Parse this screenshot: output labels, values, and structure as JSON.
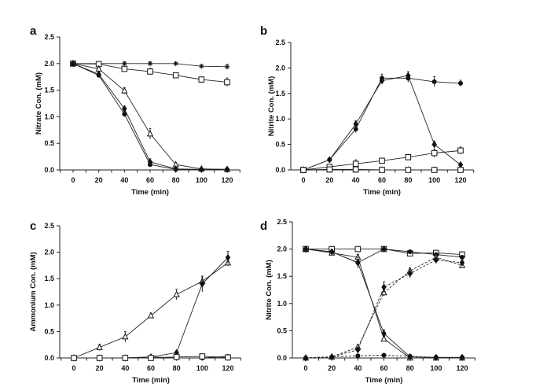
{
  "chart_data": [
    {
      "panel": "a",
      "type": "line",
      "title": "",
      "xlabel": "Time (min)",
      "ylabel": "Nitrate Con. (mM)",
      "xlim": [
        -10,
        130
      ],
      "ylim": [
        0,
        2.5
      ],
      "xticks": [
        0,
        20,
        40,
        60,
        80,
        100,
        120
      ],
      "yticks": [
        "0.0",
        "0.5",
        "1.0",
        "1.5",
        "2.0",
        "2.5"
      ],
      "grid": false,
      "legend": "none",
      "x": [
        0,
        20,
        40,
        60,
        80,
        100,
        120
      ],
      "series": [
        {
          "name": "asterisk",
          "marker": "asterisk",
          "dash": false,
          "values": [
            2.0,
            2.0,
            2.0,
            2.0,
            2.0,
            1.95,
            1.94
          ],
          "err": [
            0,
            0.02,
            0.03,
            0.03,
            0.02,
            0.02,
            0.05
          ]
        },
        {
          "name": "open-square",
          "marker": "square-open",
          "dash": false,
          "values": [
            2.0,
            1.99,
            1.9,
            1.85,
            1.78,
            1.7,
            1.65
          ],
          "err": [
            0,
            0.02,
            0.04,
            0.06,
            0.03,
            0.03,
            0.08
          ]
        },
        {
          "name": "open-triangle",
          "marker": "triangle-open",
          "dash": false,
          "values": [
            2.0,
            1.9,
            1.49,
            0.68,
            0.1,
            0.02,
            0.01
          ],
          "err": [
            0,
            0.03,
            0.06,
            0.1,
            0.03,
            0.01,
            0.01
          ]
        },
        {
          "name": "filled-diamond",
          "marker": "diamond-filled",
          "dash": false,
          "values": [
            2.0,
            1.8,
            1.15,
            0.15,
            0.02,
            0.01,
            0.01
          ],
          "err": [
            0,
            0.04,
            0.05,
            0.06,
            0.01,
            0.01,
            0.01
          ]
        },
        {
          "name": "filled-circle",
          "marker": "circle-filled",
          "dash": false,
          "values": [
            2.0,
            1.78,
            1.05,
            0.1,
            0.01,
            0.01,
            0.01
          ],
          "err": [
            0,
            0.03,
            0.05,
            0.04,
            0.01,
            0.01,
            0.01
          ]
        }
      ]
    },
    {
      "panel": "b",
      "type": "line",
      "title": "",
      "xlabel": "Time (min)",
      "ylabel": "Nitrite Con. (mM)",
      "xlim": [
        -10,
        130
      ],
      "ylim": [
        0,
        2.5
      ],
      "xticks": [
        0,
        20,
        40,
        60,
        80,
        100,
        120
      ],
      "yticks": [
        "0.0",
        "0.5",
        "1.0",
        "1.5",
        "2.0",
        "2.5"
      ],
      "grid": false,
      "legend": "none",
      "x": [
        0,
        20,
        40,
        60,
        80,
        100,
        120
      ],
      "series": [
        {
          "name": "filled-circle",
          "marker": "circle-filled",
          "dash": false,
          "values": [
            0.0,
            0.2,
            0.8,
            1.8,
            1.8,
            1.73,
            1.7
          ],
          "err": [
            0,
            0.03,
            0.07,
            0.08,
            0.08,
            0.1,
            0.06
          ]
        },
        {
          "name": "filled-diamond",
          "marker": "diamond-filled",
          "dash": false,
          "values": [
            0.0,
            0.2,
            0.9,
            1.75,
            1.85,
            0.5,
            0.1
          ],
          "err": [
            0,
            0.03,
            0.07,
            0.06,
            0.08,
            0.07,
            0.02
          ]
        },
        {
          "name": "open-square",
          "marker": "square-open",
          "dash": false,
          "values": [
            0.0,
            0.06,
            0.12,
            0.18,
            0.25,
            0.33,
            0.38
          ],
          "err": [
            0,
            0.02,
            0.08,
            0.03,
            0.03,
            0.08,
            0.07
          ]
        },
        {
          "name": "open-triangle",
          "marker": "triangle-open",
          "dash": false,
          "values": [
            0.0,
            0.0,
            0.0,
            0.0,
            0.0,
            0.0,
            0.0
          ],
          "err": [
            0,
            0,
            0,
            0,
            0,
            0,
            0
          ]
        },
        {
          "name": "open-square-low",
          "marker": "square-open",
          "dash": false,
          "values": [
            0.0,
            0.01,
            0.01,
            0.0,
            0.0,
            0.0,
            0.0
          ],
          "err": [
            0,
            0,
            0,
            0,
            0,
            0,
            0
          ]
        }
      ]
    },
    {
      "panel": "c",
      "type": "line",
      "title": "",
      "xlabel": "Time (min)",
      "ylabel": "Ammonium Con. (mM)",
      "xlim": [
        -10,
        130
      ],
      "ylim": [
        0,
        2.5
      ],
      "xticks": [
        0,
        20,
        40,
        60,
        80,
        100,
        120
      ],
      "yticks": [
        "0.0",
        "0.5",
        "1.0",
        "1.5",
        "2.0",
        "2.5"
      ],
      "grid": false,
      "legend": "none",
      "x": [
        0,
        20,
        40,
        60,
        80,
        100,
        120
      ],
      "series": [
        {
          "name": "open-triangle",
          "marker": "triangle-open",
          "dash": false,
          "values": [
            0.0,
            0.2,
            0.4,
            0.8,
            1.2,
            1.45,
            1.8
          ],
          "err": [
            0,
            0.06,
            0.1,
            0.05,
            0.1,
            0.08,
            0.06
          ]
        },
        {
          "name": "filled-diamond",
          "marker": "diamond-filled",
          "dash": false,
          "values": [
            0.0,
            0.0,
            0.0,
            0.02,
            0.1,
            1.4,
            1.9
          ],
          "err": [
            0,
            0,
            0,
            0.01,
            0.02,
            0.15,
            0.12
          ]
        },
        {
          "name": "filled-circle",
          "marker": "circle-filled",
          "dash": false,
          "values": [
            0.0,
            0.0,
            0.0,
            0.02,
            0.0,
            0.0,
            0.03
          ],
          "err": [
            0,
            0,
            0,
            0,
            0,
            0,
            0
          ]
        },
        {
          "name": "open-square",
          "marker": "square-open",
          "dash": false,
          "values": [
            0.0,
            0.0,
            0.0,
            0.0,
            0.02,
            0.03,
            0.01
          ],
          "err": [
            0,
            0,
            0,
            0,
            0.01,
            0.01,
            0.01
          ]
        }
      ]
    },
    {
      "panel": "d",
      "type": "line",
      "title": "",
      "xlabel": "Time (min)",
      "ylabel": "Nitrite Con. (mM)",
      "xlim": [
        -10,
        130
      ],
      "ylim": [
        0,
        2.5
      ],
      "xticks": [
        0,
        20,
        40,
        60,
        80,
        100,
        120
      ],
      "yticks": [
        "0.0",
        "0.5",
        "1.0",
        "1.5",
        "2.0",
        "2.5"
      ],
      "grid": false,
      "legend": "none",
      "x": [
        0,
        20,
        40,
        60,
        80,
        100,
        120
      ],
      "series": [
        {
          "name": "open-square",
          "marker": "square-open",
          "dash": false,
          "values": [
            2.0,
            2.0,
            2.0,
            2.0,
            1.92,
            1.93,
            1.9
          ],
          "err": [
            0,
            0.02,
            0.02,
            0.05,
            0.04,
            0.03,
            0.05
          ]
        },
        {
          "name": "filled-circle",
          "marker": "circle-filled",
          "dash": false,
          "values": [
            2.0,
            1.95,
            1.75,
            2.0,
            1.95,
            1.9,
            1.85
          ],
          "err": [
            0,
            0.02,
            0.03,
            0.04,
            0.03,
            0.03,
            0.03
          ]
        },
        {
          "name": "open-triangle",
          "marker": "triangle-open",
          "dash": false,
          "values": [
            2.0,
            1.93,
            1.85,
            0.35,
            0.0,
            0.0,
            0.0
          ],
          "err": [
            0,
            0.03,
            0.05,
            0.05,
            0.01,
            0,
            0
          ]
        },
        {
          "name": "filled-diamond",
          "marker": "diamond-filled",
          "dash": false,
          "values": [
            2.0,
            1.95,
            1.75,
            0.45,
            0.02,
            0.01,
            0.01
          ],
          "err": [
            0,
            0.02,
            0.1,
            0.07,
            0.01,
            0,
            0
          ]
        },
        {
          "name": "open-triangle-dashed",
          "marker": "triangle-open",
          "dash": true,
          "values": [
            0.0,
            0.02,
            0.2,
            1.2,
            1.6,
            1.85,
            1.7
          ],
          "err": [
            0,
            0.01,
            0.04,
            0.06,
            0.06,
            0.05,
            0.05
          ]
        },
        {
          "name": "filled-diamond-dashed",
          "marker": "diamond-filled",
          "dash": true,
          "values": [
            0.0,
            0.02,
            0.15,
            1.3,
            1.55,
            1.8,
            1.75
          ],
          "err": [
            0,
            0.01,
            0.04,
            0.1,
            0.08,
            0.06,
            0.05
          ]
        },
        {
          "name": "filled-circle-dashed",
          "marker": "circle-filled",
          "dash": true,
          "values": [
            0.0,
            0.02,
            0.04,
            0.05,
            0.03,
            0.01,
            0.01
          ],
          "err": [
            0,
            0,
            0,
            0,
            0,
            0,
            0
          ]
        }
      ]
    }
  ]
}
